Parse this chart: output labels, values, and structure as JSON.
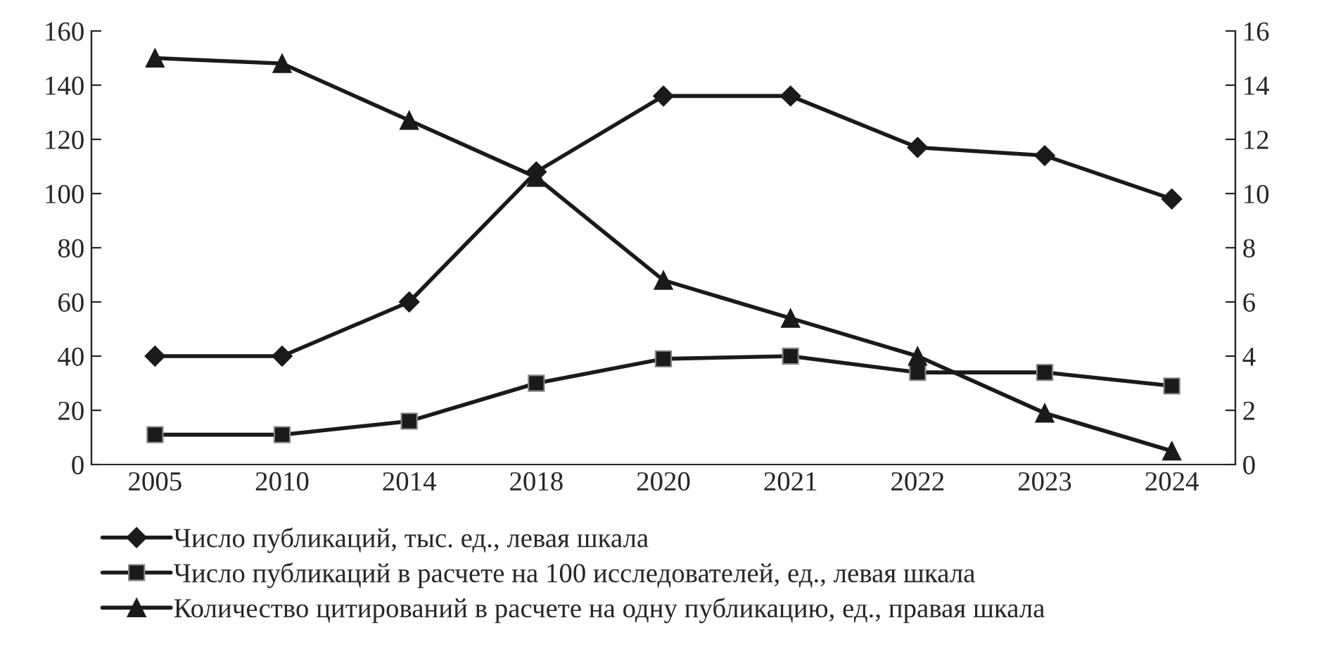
{
  "chart_data": {
    "type": "line",
    "categories": [
      "2005",
      "2010",
      "2014",
      "2018",
      "2020",
      "2021",
      "2022",
      "2023",
      "2024"
    ],
    "series": [
      {
        "name": "Число публикаций, тыс. ед., левая шкала",
        "color": "#1a1a1a",
        "marker": "diamond",
        "values": [
          40,
          40,
          60,
          108,
          136,
          136,
          117,
          114,
          98
        ]
      },
      {
        "name": "Число публикаций в расчете на 100 исследователей, ед., левая шкала",
        "color": "#1a1a1a",
        "marker": "square",
        "values": [
          11,
          11,
          16,
          30,
          39,
          40,
          34,
          34,
          29
        ]
      },
      {
        "name": "Количество цитирований в расчете на одну публикацию, ед., правая шкала",
        "color": "#1a1a1a",
        "marker": "triangle",
        "axis": "y2",
        "values": [
          15,
          14.8,
          12.7,
          10.6,
          6.8,
          5.4,
          4.0,
          1.9,
          0.5
        ]
      }
    ],
    "ylim": [
      0,
      160
    ],
    "yticks": [
      0,
      20,
      40,
      60,
      80,
      100,
      120,
      140,
      160
    ],
    "y2lim": [
      0,
      16
    ],
    "y2ticks": [
      0,
      2,
      4,
      6,
      8,
      10,
      12,
      14,
      16
    ],
    "grid": false,
    "legend": "bottom",
    "line_style": "solid"
  }
}
